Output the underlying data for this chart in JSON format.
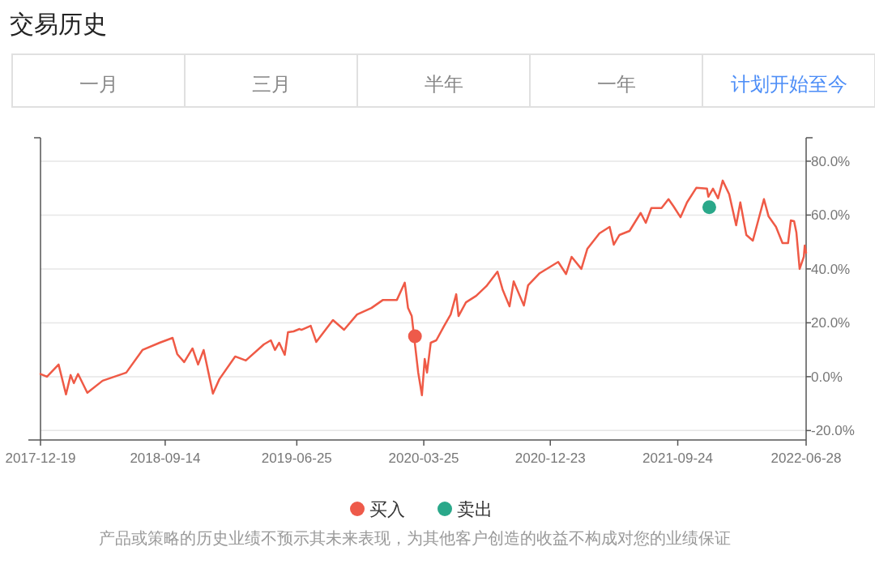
{
  "chart_data": {
    "type": "line",
    "title": "交易历史",
    "annotations": [
      "一月",
      "三月",
      "半年",
      "一年",
      "计划开始至今",
      "产品或策略的历史业绩不预示其未来表现，为其他客户创造的收益不构成对您的业绩保证"
    ],
    "xlim": [
      "2017-12-19",
      "2022-06-28"
    ],
    "xticks": [
      "2017-12-19",
      "2018-09-14",
      "2019-06-25",
      "2020-03-25",
      "2020-12-23",
      "2021-09-24",
      "2022-06-28"
    ],
    "ylim": [
      -23.5,
      88.7
    ],
    "yticks": [
      {
        "value": -20,
        "label": "-20.0%"
      },
      {
        "value": 0,
        "label": "0.0%"
      },
      {
        "value": 20,
        "label": "20.0%"
      },
      {
        "value": 40,
        "label": "40.0%"
      },
      {
        "value": 60,
        "label": "60.0%"
      },
      {
        "value": 80,
        "label": "80.0%"
      }
    ],
    "grid": "y",
    "legend": "bottom",
    "series": [
      {
        "color": "#ef5a46",
        "marker": "none",
        "x": [
          "2017-12-19",
          "2018-01-02",
          "2018-01-27",
          "2018-02-12",
          "2018-02-22",
          "2018-03-01",
          "2018-03-10",
          "2018-03-30",
          "2018-05-02",
          "2018-06-22",
          "2018-07-27",
          "2018-09-02",
          "2018-09-30",
          "2018-10-10",
          "2018-10-25",
          "2018-11-12",
          "2018-11-24",
          "2018-12-06",
          "2018-12-26",
          "2019-01-09",
          "2019-02-12",
          "2019-03-07",
          "2019-04-15",
          "2019-04-30",
          "2019-05-09",
          "2019-05-18",
          "2019-05-30",
          "2019-06-06",
          "2019-06-18",
          "2019-07-01",
          "2019-07-05",
          "2019-07-25",
          "2019-08-06",
          "2019-09-11",
          "2019-10-05",
          "2019-11-02",
          "2019-12-03",
          "2019-12-28",
          "2020-01-27",
          "2020-02-13",
          "2020-02-20",
          "2020-02-28",
          "2020-03-13",
          "2020-03-21",
          "2020-03-27",
          "2020-04-01",
          "2020-04-09",
          "2020-04-21",
          "2020-05-08",
          "2020-05-22",
          "2020-06-03",
          "2020-06-08",
          "2020-06-24",
          "2020-07-16",
          "2020-08-07",
          "2020-08-31",
          "2020-09-11",
          "2020-09-26",
          "2020-10-05",
          "2020-10-27",
          "2020-11-05",
          "2020-11-30",
          "2021-01-09",
          "2021-01-26",
          "2021-02-07",
          "2021-02-28",
          "2021-03-13",
          "2021-04-08",
          "2021-04-30",
          "2021-05-09",
          "2021-05-21",
          "2021-06-12",
          "2021-07-06",
          "2021-07-17",
          "2021-07-29",
          "2021-08-20",
          "2021-09-04",
          "2021-09-15",
          "2021-09-30",
          "2021-10-14",
          "2021-11-03",
          "2021-11-26",
          "2021-11-29",
          "2021-12-09",
          "2021-12-20",
          "2021-12-30",
          "2022-01-13",
          "2022-01-28",
          "2022-02-06",
          "2022-02-19",
          "2022-03-05",
          "2022-03-21",
          "2022-03-29",
          "2022-04-08",
          "2022-04-24",
          "2022-05-08",
          "2022-05-20",
          "2022-05-26",
          "2022-06-02",
          "2022-06-07",
          "2022-06-14",
          "2022-06-23",
          "2022-06-25",
          "2022-06-28"
        ],
        "values": [
          1.0,
          0,
          4.5,
          -6.6,
          0.6,
          -2.4,
          1,
          -6,
          -1.5,
          1.5,
          9.9,
          12.6,
          14.4,
          8.4,
          5.4,
          10.5,
          4.5,
          9.9,
          -6.3,
          -0.9,
          7.5,
          6,
          12,
          13.5,
          9.9,
          12.6,
          8.1,
          16.5,
          16.8,
          17.7,
          17.4,
          18.9,
          12.9,
          21,
          17.4,
          23.1,
          25.5,
          28.5,
          28.5,
          34.9,
          25.5,
          22.5,
          1.5,
          -6.9,
          6.6,
          1.5,
          12.6,
          13.5,
          18.9,
          23.1,
          30.6,
          22.5,
          27.6,
          30,
          33.6,
          39,
          32.4,
          26.1,
          35.4,
          26.4,
          33.9,
          38.4,
          42.6,
          38.1,
          44.5,
          40,
          47.5,
          53.2,
          55.6,
          49,
          52.6,
          54.1,
          60.8,
          57.1,
          62.6,
          62.6,
          65.9,
          63.2,
          59.2,
          64.7,
          70.1,
          69.8,
          66.8,
          69.8,
          66.2,
          72.8,
          67.7,
          56.2,
          64.7,
          52.6,
          50.5,
          60.8,
          65.9,
          59.5,
          55.6,
          49.6,
          49.6,
          58,
          57.7,
          53.5,
          40,
          44.5,
          48.7,
          46
        ]
      },
      {
        "type": "scatter",
        "name": "买入",
        "color": "#ee5a4a",
        "marker": "circle",
        "x": [
          "2020-03-06"
        ],
        "values": [
          15.0
        ]
      },
      {
        "type": "scatter",
        "name": "卖出",
        "color": "#2aa88a",
        "marker": "circle",
        "x": [
          "2021-12-01"
        ],
        "values": [
          62.9
        ]
      }
    ]
  }
}
